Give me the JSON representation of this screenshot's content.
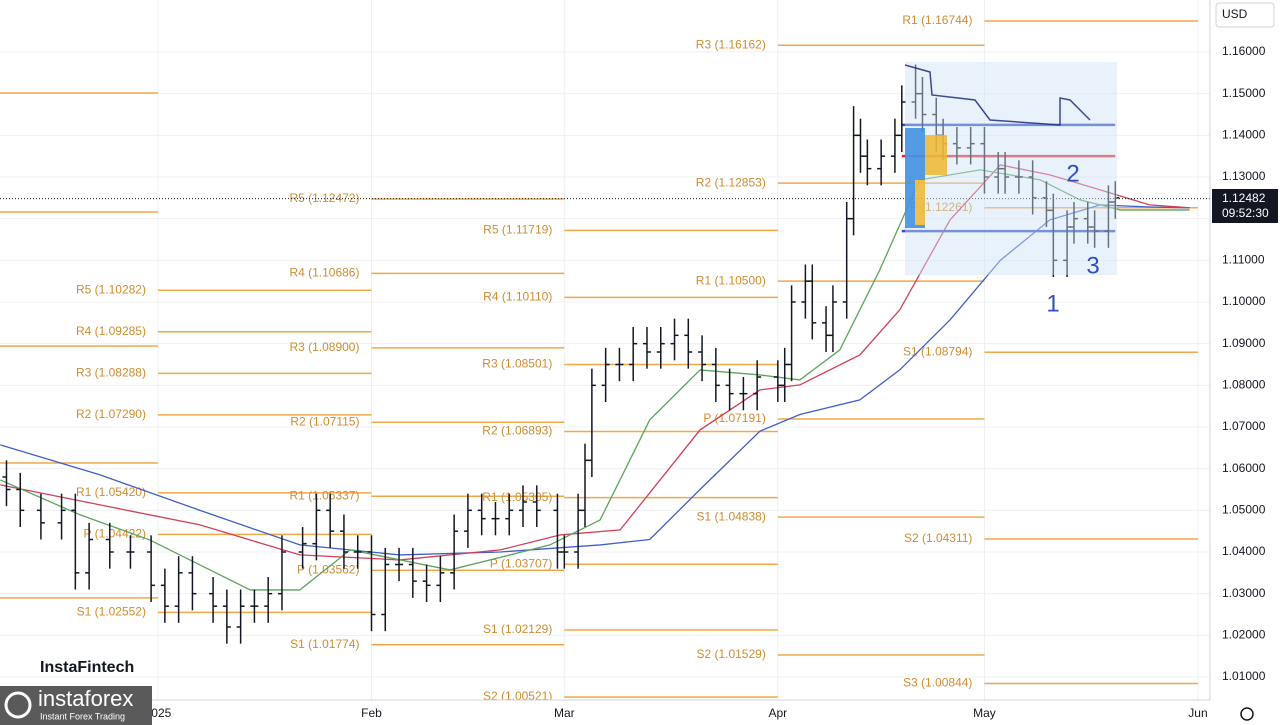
{
  "chart_data": {
    "type": "ohlc",
    "currency": "USD",
    "xlim": [
      -22.94,
      152.75
    ],
    "ylim": [
      1.00448,
      1.17248
    ],
    "grid": true,
    "bar_color": "#131722",
    "xticks": [
      {
        "value": 0,
        "label": "2025"
      },
      {
        "value": 31,
        "label": "Feb"
      },
      {
        "value": 59,
        "label": "Mar"
      },
      {
        "value": 90,
        "label": "Apr"
      },
      {
        "value": 120,
        "label": "May"
      },
      {
        "value": 151,
        "label": "Jun"
      }
    ],
    "yticks": [
      {
        "value": 1.01,
        "label": "1.01000"
      },
      {
        "value": 1.02,
        "label": "1.02000"
      },
      {
        "value": 1.03,
        "label": "1.03000"
      },
      {
        "value": 1.04,
        "label": "1.04000"
      },
      {
        "value": 1.05,
        "label": "1.05000"
      },
      {
        "value": 1.06,
        "label": "1.06000"
      },
      {
        "value": 1.07,
        "label": "1.07000"
      },
      {
        "value": 1.08,
        "label": "1.08000"
      },
      {
        "value": 1.09,
        "label": "1.09000"
      },
      {
        "value": 1.1,
        "label": "1.10000"
      },
      {
        "value": 1.11,
        "label": "1.11000"
      },
      {
        "value": 1.12,
        "label": "1.12000"
      },
      {
        "value": 1.13,
        "label": "1.13000"
      },
      {
        "value": 1.14,
        "label": "1.14000"
      },
      {
        "value": 1.15,
        "label": "1.15000"
      },
      {
        "value": 1.16,
        "label": "1.16000"
      }
    ],
    "ohlc": {
      "x": [
        -22,
        -20,
        -17,
        -14,
        -12,
        -10,
        -7,
        -4,
        -1,
        1,
        3,
        5,
        8,
        10,
        12,
        14,
        16,
        18,
        21,
        23,
        25,
        27,
        29,
        31,
        33,
        35,
        37,
        39,
        41,
        43,
        45,
        47,
        49,
        51,
        53,
        55,
        58,
        59,
        61,
        62,
        63,
        65,
        67,
        69,
        71,
        73,
        75,
        77,
        79,
        81,
        83,
        85,
        87,
        90,
        91,
        92,
        94,
        95,
        97,
        98,
        100,
        101,
        102,
        103,
        105,
        107,
        108,
        110,
        111,
        113,
        114,
        116,
        118,
        120,
        122,
        123,
        125,
        127,
        129,
        130,
        132,
        133,
        135,
        136,
        138,
        139
      ],
      "open": [
        1.058,
        1.055,
        1.05,
        1.047,
        1.05,
        1.035,
        1.043,
        1.04,
        1.04,
        1.032,
        1.027,
        1.035,
        1.03,
        1.027,
        1.022,
        1.027,
        1.027,
        1.03,
        1.04,
        1.042,
        1.05,
        1.045,
        1.04,
        1.04,
        1.025,
        1.037,
        1.037,
        1.033,
        1.032,
        1.035,
        1.045,
        1.05,
        1.048,
        1.048,
        1.05,
        1.052,
        1.05,
        1.04,
        1.04,
        1.05,
        1.062,
        1.08,
        1.085,
        1.085,
        1.09,
        1.088,
        1.09,
        1.092,
        1.088,
        1.085,
        1.08,
        1.078,
        1.078,
        1.082,
        1.08,
        1.085,
        1.1,
        1.105,
        1.095,
        1.092,
        1.1,
        1.12,
        1.14,
        1.135,
        1.132,
        1.135,
        1.14,
        1.148,
        1.15,
        1.145,
        1.14,
        1.138,
        1.137,
        1.138,
        1.13,
        1.132,
        1.13,
        1.13,
        1.125,
        1.122,
        1.11,
        1.118,
        1.12,
        1.118,
        1.117,
        1.124
      ],
      "high": [
        1.062,
        1.059,
        1.054,
        1.054,
        1.054,
        1.047,
        1.047,
        1.044,
        1.044,
        1.036,
        1.039,
        1.039,
        1.034,
        1.031,
        1.031,
        1.031,
        1.034,
        1.044,
        1.046,
        1.054,
        1.054,
        1.049,
        1.044,
        1.044,
        1.041,
        1.041,
        1.041,
        1.037,
        1.039,
        1.049,
        1.054,
        1.054,
        1.052,
        1.054,
        1.056,
        1.056,
        1.054,
        1.044,
        1.054,
        1.066,
        1.084,
        1.089,
        1.089,
        1.094,
        1.094,
        1.094,
        1.096,
        1.096,
        1.092,
        1.089,
        1.084,
        1.082,
        1.086,
        1.086,
        1.089,
        1.104,
        1.109,
        1.109,
        1.099,
        1.104,
        1.124,
        1.147,
        1.144,
        1.139,
        1.139,
        1.144,
        1.152,
        1.157,
        1.154,
        1.149,
        1.144,
        1.142,
        1.142,
        1.142,
        1.136,
        1.136,
        1.134,
        1.134,
        1.129,
        1.126,
        1.122,
        1.124,
        1.124,
        1.122,
        1.128,
        1.129
      ],
      "low": [
        1.051,
        1.046,
        1.043,
        1.043,
        1.031,
        1.031,
        1.036,
        1.036,
        1.028,
        1.023,
        1.023,
        1.026,
        1.023,
        1.018,
        1.018,
        1.023,
        1.023,
        1.026,
        1.036,
        1.038,
        1.041,
        1.036,
        1.036,
        1.021,
        1.021,
        1.033,
        1.029,
        1.028,
        1.028,
        1.031,
        1.041,
        1.044,
        1.044,
        1.044,
        1.046,
        1.046,
        1.036,
        1.036,
        1.036,
        1.046,
        1.058,
        1.076,
        1.081,
        1.081,
        1.084,
        1.084,
        1.086,
        1.084,
        1.081,
        1.076,
        1.074,
        1.074,
        1.074,
        1.076,
        1.076,
        1.081,
        1.096,
        1.091,
        1.088,
        1.088,
        1.096,
        1.116,
        1.131,
        1.128,
        1.128,
        1.131,
        1.136,
        1.144,
        1.141,
        1.136,
        1.134,
        1.133,
        1.133,
        1.126,
        1.126,
        1.126,
        1.126,
        1.121,
        1.118,
        1.106,
        1.106,
        1.114,
        1.114,
        1.113,
        1.113,
        1.12
      ],
      "close": [
        1.055,
        1.05,
        1.047,
        1.05,
        1.035,
        1.043,
        1.04,
        1.04,
        1.032,
        1.027,
        1.035,
        1.03,
        1.027,
        1.022,
        1.027,
        1.027,
        1.03,
        1.04,
        1.042,
        1.05,
        1.045,
        1.04,
        1.04,
        1.025,
        1.037,
        1.037,
        1.033,
        1.032,
        1.035,
        1.045,
        1.05,
        1.048,
        1.048,
        1.05,
        1.052,
        1.05,
        1.04,
        1.04,
        1.05,
        1.062,
        1.08,
        1.085,
        1.085,
        1.09,
        1.088,
        1.09,
        1.092,
        1.088,
        1.085,
        1.08,
        1.078,
        1.078,
        1.082,
        1.08,
        1.085,
        1.1,
        1.105,
        1.095,
        1.092,
        1.1,
        1.12,
        1.14,
        1.135,
        1.132,
        1.135,
        1.14,
        1.148,
        1.15,
        1.145,
        1.14,
        1.138,
        1.137,
        1.138,
        1.13,
        1.132,
        1.13,
        1.13,
        1.125,
        1.122,
        1.11,
        1.118,
        1.12,
        1.118,
        1.117,
        1.124,
        1.125
      ]
    },
    "pivot_color": "#f0a848",
    "pivot_label_color": "#d08c30",
    "pivots": [
      {
        "x": [
          -23,
          0
        ],
        "levels": [
          {
            "value": 1.15016
          },
          {
            "value": 1.1216
          },
          {
            "value": 1.08944
          },
          {
            "value": 1.06136
          },
          {
            "value": 1.029
          }
        ]
      },
      {
        "x": [
          0,
          31
        ],
        "levels": [
          {
            "label": "R5 (1.10282)",
            "value": 1.10282
          },
          {
            "label": "R4 (1.09285)",
            "value": 1.09285
          },
          {
            "label": "R3 (1.08288)",
            "value": 1.08288
          },
          {
            "label": "R2 (1.07290)",
            "value": 1.0729
          },
          {
            "label": "R1 (1.05420)",
            "value": 1.0542
          },
          {
            "label": "P (1.04422)",
            "value": 1.04422
          },
          {
            "label": "S1 (1.02552)",
            "value": 1.02552
          }
        ]
      },
      {
        "x": [
          31,
          59
        ],
        "levels": [
          {
            "label": "R5 (1.12472)",
            "value": 1.12472
          },
          {
            "label": "R4 (1.10686)",
            "value": 1.10686
          },
          {
            "label": "R3 (1.08900)",
            "value": 1.089
          },
          {
            "label": "R2 (1.07115)",
            "value": 1.07115
          },
          {
            "label": "R1 (1.05337)",
            "value": 1.05337
          },
          {
            "label": "P (1.03562)",
            "value": 1.03562
          },
          {
            "label": "S1 (1.01774)",
            "value": 1.01774
          }
        ]
      },
      {
        "x": [
          59,
          90
        ],
        "levels": [
          {
            "label": "R5 (1.11719)",
            "value": 1.11719
          },
          {
            "label": "R4 (1.10110)",
            "value": 1.1011
          },
          {
            "label": "R3 (1.08501)",
            "value": 1.08501
          },
          {
            "label": "R2 (1.06893)",
            "value": 1.06893
          },
          {
            "label": "R1 (1.05305)",
            "value": 1.05305
          },
          {
            "label": "P (1.03707)",
            "value": 1.03707
          },
          {
            "label": "S1 (1.02129)",
            "value": 1.02129
          },
          {
            "label": "S2 (1.00521)",
            "value": 1.00521
          }
        ]
      },
      {
        "x": [
          90,
          120
        ],
        "levels": [
          {
            "label": "R3 (1.16162)",
            "value": 1.16162
          },
          {
            "label": "R2 (1.12853)",
            "value": 1.12853
          },
          {
            "label": "R1 (1.10500)",
            "value": 1.105
          },
          {
            "label": "P (1.07191)",
            "value": 1.07191
          },
          {
            "label": "S1 (1.04838)",
            "value": 1.04838
          },
          {
            "label": "S2 (1.01529)",
            "value": 1.01529
          }
        ]
      },
      {
        "x": [
          120,
          151
        ],
        "levels": [
          {
            "label": "R1 (1.16744)",
            "value": 1.16744
          },
          {
            "label": "P (1.12261)",
            "value": 1.12261
          },
          {
            "label": "S1 (1.08794)",
            "value": 1.08794
          },
          {
            "label": "S2 (1.04311)",
            "value": 1.04311
          },
          {
            "label": "S3 (1.00844)",
            "value": 1.00844
          }
        ]
      }
    ],
    "moving_averages": [
      {
        "color": "#3f5fc8",
        "x": [
          -22.9,
          -8.4,
          6.1,
          20.6,
          35.1,
          49.7,
          64.2,
          71.4,
          78.7,
          87.4,
          93.2,
          101.9,
          107.7,
          115.0,
          122.3,
          129.5,
          136.8,
          144.0,
          149.8
        ],
        "values": [
          1.0657,
          1.0585,
          1.05,
          1.0417,
          1.0393,
          1.04,
          1.0417,
          1.043,
          1.055,
          1.069,
          1.073,
          1.0765,
          1.0837,
          1.0957,
          1.11,
          1.1197,
          1.1233,
          1.1228,
          1.1226
        ]
      },
      {
        "color": "#d0405a",
        "x": [
          -22.9,
          -8.4,
          6.1,
          20.6,
          35.1,
          49.7,
          58.4,
          67.1,
          72.9,
          78.7,
          87.4,
          93.2,
          101.9,
          107.7,
          115.0,
          122.3,
          129.5,
          136.8,
          144.0,
          149.8
        ],
        "values": [
          1.0561,
          1.0513,
          1.0465,
          1.0393,
          1.0381,
          1.0405,
          1.0441,
          1.0453,
          1.0573,
          1.0693,
          1.0789,
          1.0801,
          1.0873,
          1.0981,
          1.1197,
          1.1329,
          1.1305,
          1.1269,
          1.1233,
          1.1226
        ]
      },
      {
        "color": "#5aa55a",
        "x": [
          -22.9,
          -11.3,
          -1.2,
          13.4,
          20.6,
          27.9,
          42.4,
          56.9,
          64.2,
          71.4,
          78.7,
          87.4,
          93.2,
          99.0,
          104.8,
          110.6,
          119.4,
          128.1,
          133.9,
          139.7,
          149.8
        ],
        "values": [
          1.0573,
          1.0489,
          1.0429,
          1.0309,
          1.0309,
          1.0405,
          1.0357,
          1.0417,
          1.0477,
          1.0717,
          1.0837,
          1.0825,
          1.0813,
          1.0885,
          1.1077,
          1.1293,
          1.1317,
          1.1293,
          1.1245,
          1.1221,
          1.1221
        ]
      }
    ],
    "levels": [
      {
        "color": "#2f4fc0",
        "value": 1.1425,
        "x": [
          108,
          139
        ]
      },
      {
        "color": "#e02828",
        "value": 1.135,
        "x": [
          108,
          139
        ]
      },
      {
        "color": "#2f4fc0",
        "value": 1.117,
        "x": [
          108,
          139
        ]
      }
    ],
    "last_price": 1.12482,
    "last_time": "09:52:30",
    "annotation_color": "#2f4fc0",
    "annotations": [
      "1",
      "2",
      "3"
    ]
  },
  "watermark": {
    "name": "InstaFintech",
    "logo": "instaforex",
    "tagline": "Instant Forex Trading"
  }
}
